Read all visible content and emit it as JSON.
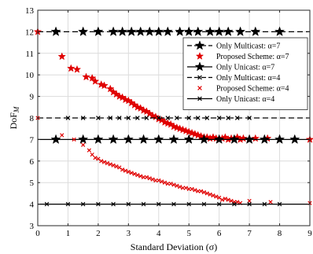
{
  "chart_data": {
    "type": "scatter",
    "xlabel": "Standard Deviation (σ)",
    "ylabel": "DoF",
    "ylabel_subscript": "M",
    "xlim": [
      0,
      9
    ],
    "ylim": [
      3,
      13
    ],
    "x_ticks": [
      "0",
      "1",
      "2",
      "3",
      "4",
      "5",
      "6",
      "7",
      "8",
      "9"
    ],
    "y_ticks": [
      "3",
      "4",
      "5",
      "6",
      "7",
      "8",
      "9",
      "10",
      "11",
      "12",
      "13"
    ],
    "grid": true,
    "legend_position": "top-right",
    "series": [
      {
        "name": "Only Multicast: α=7",
        "line": "dashed",
        "marker": "star",
        "color": "#000000",
        "x": [
          0.6,
          1.5,
          2.0,
          2.5,
          2.8,
          3.1,
          3.4,
          3.7,
          4.0,
          4.3,
          4.7,
          5.0,
          5.3,
          5.7,
          6.0,
          6.3,
          6.7,
          7.2,
          8.0
        ],
        "y": [
          12,
          12,
          12,
          12,
          12,
          12,
          12,
          12,
          12,
          12,
          12,
          12,
          12,
          12,
          12,
          12,
          12,
          12,
          12
        ]
      },
      {
        "name": "Proposed Scheme: α=7",
        "line": "none",
        "marker": "star",
        "color": "#e00000",
        "x": [
          0.0,
          0.8,
          1.1,
          1.3,
          1.6,
          1.8,
          1.9,
          2.1,
          2.2,
          2.4,
          2.5,
          2.6,
          2.7,
          2.8,
          2.9,
          3.0,
          3.1,
          3.2,
          3.3,
          3.4,
          3.5,
          3.6,
          3.7,
          3.8,
          3.9,
          4.0,
          4.1,
          4.2,
          4.3,
          4.4,
          4.5,
          4.6,
          4.7,
          4.8,
          4.9,
          5.0,
          5.1,
          5.2,
          5.3,
          5.4,
          5.5,
          5.6,
          5.7,
          5.8,
          5.9,
          6.0,
          6.1,
          6.2,
          6.3,
          6.4,
          6.5,
          6.6,
          6.7,
          6.8,
          7.0,
          7.2,
          7.6,
          9.0
        ],
        "y": [
          12.0,
          10.85,
          10.3,
          10.25,
          9.9,
          9.85,
          9.7,
          9.55,
          9.5,
          9.35,
          9.2,
          9.1,
          9.0,
          8.95,
          8.85,
          8.8,
          8.7,
          8.6,
          8.5,
          8.45,
          8.35,
          8.3,
          8.2,
          8.1,
          8.05,
          7.95,
          7.9,
          7.8,
          7.75,
          7.7,
          7.6,
          7.55,
          7.5,
          7.45,
          7.4,
          7.35,
          7.3,
          7.25,
          7.2,
          7.15,
          7.1,
          7.1,
          7.05,
          7.1,
          7.05,
          7.0,
          7.05,
          7.1,
          7.0,
          7.05,
          7.0,
          7.1,
          7.0,
          7.05,
          7.0,
          7.05,
          7.05,
          7.0
        ]
      },
      {
        "name": "Only Unicast: α=7",
        "line": "solid",
        "marker": "star",
        "color": "#000000",
        "x": [
          0.6,
          1.5,
          2.0,
          2.5,
          3.0,
          3.5,
          4.0,
          4.5,
          5.0,
          5.5,
          6.0,
          6.5,
          7.0,
          7.5,
          8.0,
          8.5
        ],
        "y": [
          7,
          7,
          7,
          7,
          7,
          7,
          7,
          7,
          7,
          7,
          7,
          7,
          7,
          7,
          7,
          7
        ]
      },
      {
        "name": "Only Multicast: α=4",
        "line": "dashed",
        "marker": "x",
        "color": "#000000",
        "x": [
          1.0,
          1.5,
          2.0,
          2.4,
          2.7,
          3.0,
          3.3,
          3.6,
          4.0,
          4.3,
          4.6,
          5.0,
          5.3,
          5.6,
          6.0,
          6.3,
          6.6,
          7.0
        ],
        "y": [
          8,
          8,
          8,
          8,
          8,
          8,
          8,
          8,
          8,
          8,
          8,
          8,
          8,
          8,
          8,
          8,
          8,
          8
        ]
      },
      {
        "name": "Proposed Scheme: α=4",
        "line": "none",
        "marker": "x",
        "color": "#e00000",
        "x": [
          0.0,
          0.8,
          1.2,
          1.5,
          1.7,
          1.8,
          1.9,
          2.0,
          2.1,
          2.2,
          2.3,
          2.4,
          2.5,
          2.6,
          2.7,
          2.8,
          2.9,
          3.0,
          3.1,
          3.2,
          3.3,
          3.4,
          3.5,
          3.6,
          3.7,
          3.8,
          3.9,
          4.0,
          4.1,
          4.2,
          4.3,
          4.4,
          4.5,
          4.6,
          4.7,
          4.8,
          4.9,
          5.0,
          5.1,
          5.2,
          5.3,
          5.4,
          5.5,
          5.6,
          5.7,
          5.8,
          5.9,
          6.0,
          6.1,
          6.2,
          6.3,
          6.4,
          6.5,
          6.6,
          6.7,
          7.0,
          7.7,
          9.0
        ],
        "y": [
          8.0,
          7.2,
          7.0,
          6.75,
          6.5,
          6.3,
          6.15,
          6.1,
          6.0,
          5.95,
          5.9,
          5.85,
          5.8,
          5.75,
          5.7,
          5.6,
          5.55,
          5.5,
          5.45,
          5.4,
          5.35,
          5.3,
          5.25,
          5.25,
          5.2,
          5.15,
          5.1,
          5.1,
          5.05,
          5.0,
          4.95,
          4.95,
          4.9,
          4.85,
          4.8,
          4.75,
          4.75,
          4.7,
          4.7,
          4.65,
          4.6,
          4.6,
          4.55,
          4.5,
          4.45,
          4.4,
          4.35,
          4.3,
          4.2,
          4.25,
          4.2,
          4.15,
          4.1,
          4.1,
          4.05,
          4.15,
          4.1,
          4.05
        ]
      },
      {
        "name": "Only Unicast: α=4",
        "line": "solid",
        "marker": "x",
        "color": "#000000",
        "x": [
          0.3,
          1.0,
          1.5,
          2.0,
          2.5,
          3.0,
          3.5,
          4.0,
          4.5,
          5.0,
          5.5,
          6.0,
          6.5,
          7.0,
          7.5,
          8.0
        ],
        "y": [
          4,
          4,
          4,
          4,
          4,
          4,
          4,
          4,
          4,
          4,
          4,
          4,
          4,
          4,
          4,
          4
        ]
      }
    ]
  }
}
